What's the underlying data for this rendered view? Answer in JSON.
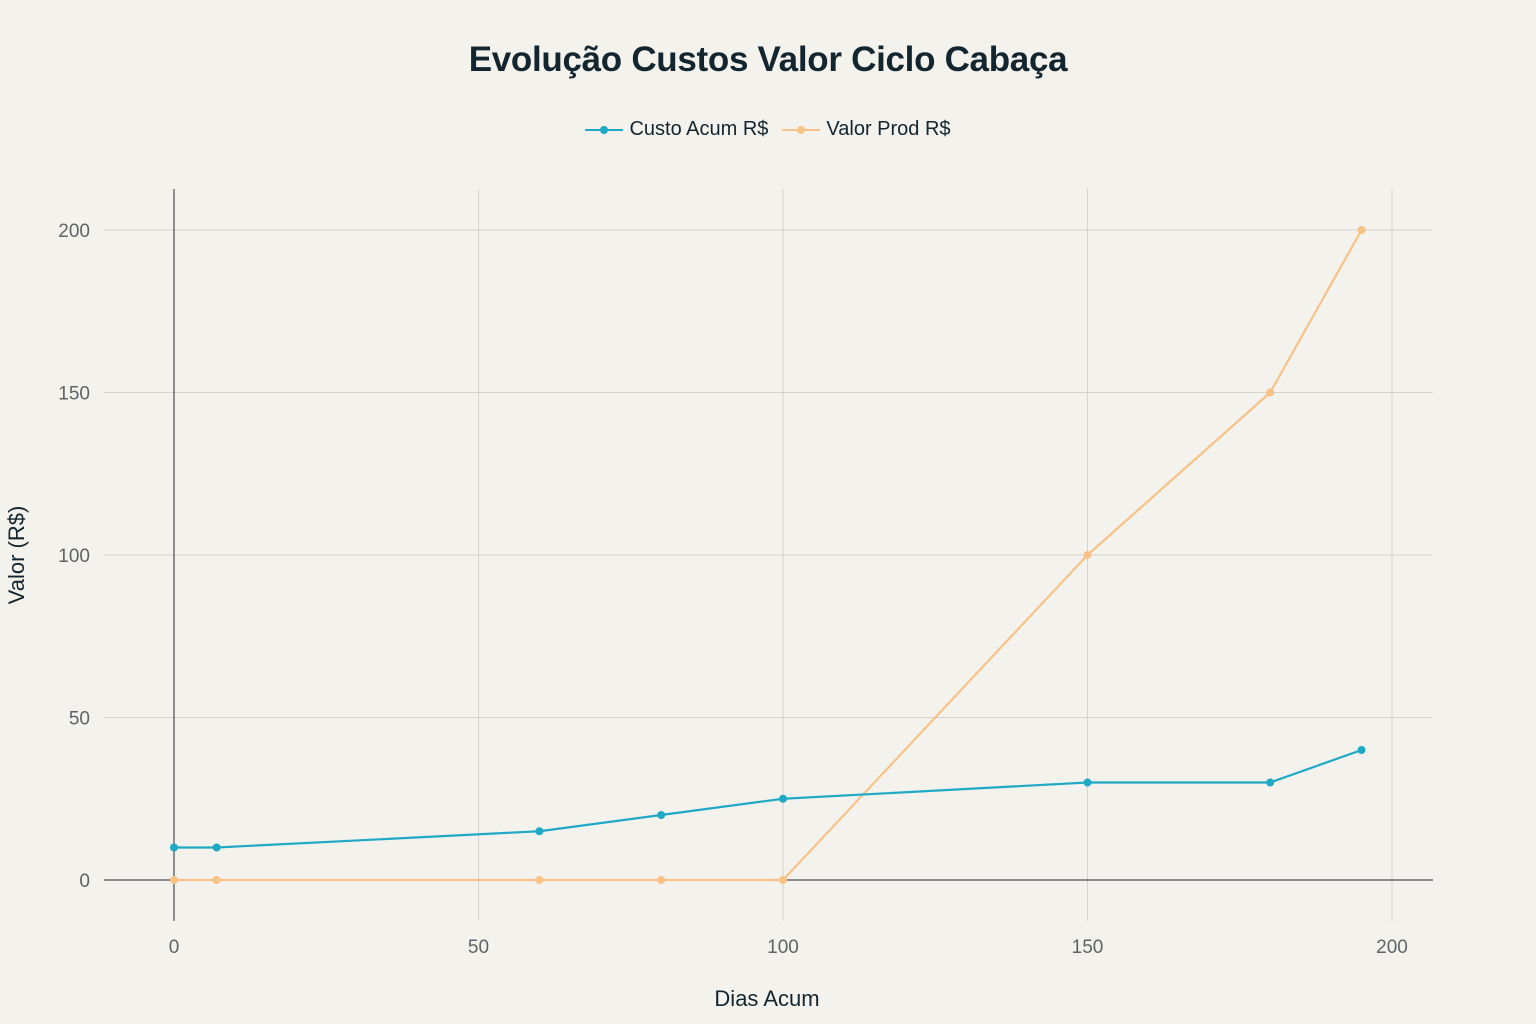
{
  "chart_data": {
    "type": "line",
    "title": "Evolução Custos Valor Ciclo Cabaça",
    "xlabel": "Dias Acum",
    "ylabel": "Valor (R$)",
    "x": [
      0,
      7,
      60,
      80,
      100,
      150,
      180,
      195
    ],
    "series": [
      {
        "name": "Custo Acum R$",
        "color": "#1fa9c4",
        "values": [
          10,
          10,
          15,
          20,
          25,
          30,
          30,
          40
        ]
      },
      {
        "name": "Valor Prod R$",
        "color": "#f8c287",
        "values": [
          0,
          0,
          0,
          0,
          0,
          100,
          150,
          200
        ]
      }
    ],
    "xlim": [
      -10,
      207
    ],
    "ylim": [
      -13,
      213
    ],
    "xticks": [
      0,
      50,
      100,
      150,
      200
    ],
    "yticks": [
      0,
      50,
      100,
      150,
      200
    ],
    "grid": true,
    "legend_position": "top-center"
  },
  "legend": {
    "items": [
      {
        "label": "Custo Acum R$",
        "color": "#1fa9c4"
      },
      {
        "label": "Valor Prod R$",
        "color": "#f8c287"
      }
    ]
  }
}
